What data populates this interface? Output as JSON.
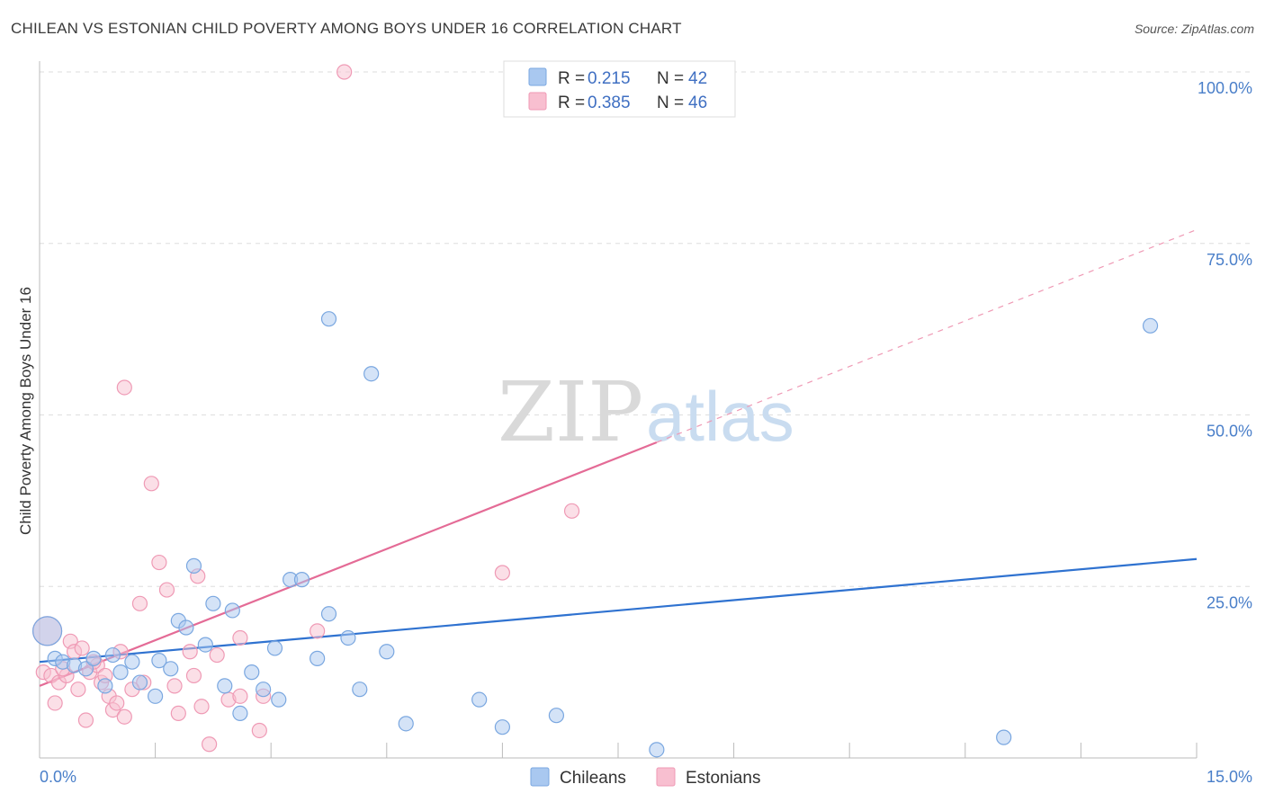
{
  "header": {
    "title": "CHILEAN VS ESTONIAN CHILD POVERTY AMONG BOYS UNDER 16 CORRELATION CHART",
    "source": "Source: ZipAtlas.com"
  },
  "watermark": {
    "zip": "ZIP",
    "atlas": "atlas"
  },
  "colors": {
    "chileans_fill": "#a9c8f0",
    "chileans_stroke": "#7aa7e0",
    "chileans_line": "#2f72d0",
    "estonians_fill": "#f8bfd0",
    "estonians_stroke": "#ef9ab5",
    "estonians_line": "#e46b96",
    "grid": "#dedede"
  },
  "legend": {
    "rows": [
      {
        "r_label": "R =",
        "r_value": "0.215",
        "n_label": "N =",
        "n_value": "42"
      },
      {
        "r_label": "R =",
        "r_value": "0.385",
        "n_label": "N =",
        "n_value": "46"
      }
    ]
  },
  "chart_data": {
    "type": "scatter",
    "title": "CHILEAN VS ESTONIAN CHILD POVERTY AMONG BOYS UNDER 16 CORRELATION CHART",
    "xlabel": "",
    "ylabel": "Child Poverty Among Boys Under 16",
    "xlim": [
      0,
      15
    ],
    "ylim": [
      0,
      100
    ],
    "x_tick_labels": [
      "0.0%",
      "15.0%"
    ],
    "y_ticks": [
      25,
      50,
      75,
      100
    ],
    "y_tick_labels": [
      "25.0%",
      "50.0%",
      "75.0%",
      "100.0%"
    ],
    "grid": true,
    "series": [
      {
        "name": "Chileans",
        "r": 0.215,
        "n": 42,
        "trend": {
          "x": [
            0,
            15
          ],
          "y": [
            14.0,
            29.0
          ],
          "dashed_extension": false
        },
        "points": [
          {
            "x": 0.1,
            "y": 18.5,
            "big": true
          },
          {
            "x": 0.2,
            "y": 14.5
          },
          {
            "x": 0.3,
            "y": 14.0
          },
          {
            "x": 0.45,
            "y": 13.5
          },
          {
            "x": 0.6,
            "y": 13.0
          },
          {
            "x": 0.7,
            "y": 14.5
          },
          {
            "x": 0.85,
            "y": 10.5
          },
          {
            "x": 0.95,
            "y": 15.0
          },
          {
            "x": 1.05,
            "y": 12.5
          },
          {
            "x": 1.2,
            "y": 14.0
          },
          {
            "x": 1.3,
            "y": 11.0
          },
          {
            "x": 1.5,
            "y": 9.0
          },
          {
            "x": 1.55,
            "y": 14.2
          },
          {
            "x": 1.7,
            "y": 13.0
          },
          {
            "x": 1.8,
            "y": 20.0
          },
          {
            "x": 1.9,
            "y": 19.0
          },
          {
            "x": 2.0,
            "y": 28.0
          },
          {
            "x": 2.15,
            "y": 16.5
          },
          {
            "x": 2.25,
            "y": 22.5
          },
          {
            "x": 2.4,
            "y": 10.5
          },
          {
            "x": 2.5,
            "y": 21.5
          },
          {
            "x": 2.6,
            "y": 6.5
          },
          {
            "x": 2.75,
            "y": 12.5
          },
          {
            "x": 2.9,
            "y": 10.0
          },
          {
            "x": 3.05,
            "y": 16.0
          },
          {
            "x": 3.1,
            "y": 8.5
          },
          {
            "x": 3.25,
            "y": 26.0
          },
          {
            "x": 3.4,
            "y": 26.0
          },
          {
            "x": 3.6,
            "y": 14.5
          },
          {
            "x": 3.75,
            "y": 21.0
          },
          {
            "x": 3.75,
            "y": 64.0
          },
          {
            "x": 4.0,
            "y": 17.5
          },
          {
            "x": 4.15,
            "y": 10.0
          },
          {
            "x": 4.3,
            "y": 56.0
          },
          {
            "x": 4.5,
            "y": 15.5
          },
          {
            "x": 4.75,
            "y": 5.0
          },
          {
            "x": 5.7,
            "y": 8.5
          },
          {
            "x": 6.0,
            "y": 4.5
          },
          {
            "x": 6.7,
            "y": 6.2
          },
          {
            "x": 8.0,
            "y": 1.2
          },
          {
            "x": 12.5,
            "y": 3.0
          },
          {
            "x": 14.4,
            "y": 63.0
          }
        ]
      },
      {
        "name": "Estonians",
        "r": 0.385,
        "n": 46,
        "trend": {
          "x": [
            0,
            8.0
          ],
          "y": [
            10.5,
            46.0
          ],
          "dashed_extension": true,
          "dashed_to": {
            "x": 15,
            "y": 77.0
          }
        },
        "points": [
          {
            "x": 0.05,
            "y": 12.5
          },
          {
            "x": 0.15,
            "y": 12.0
          },
          {
            "x": 0.2,
            "y": 8.0
          },
          {
            "x": 0.25,
            "y": 11.0
          },
          {
            "x": 0.35,
            "y": 12.0
          },
          {
            "x": 0.4,
            "y": 17.0
          },
          {
            "x": 0.45,
            "y": 15.5
          },
          {
            "x": 0.5,
            "y": 10.0
          },
          {
            "x": 0.55,
            "y": 16.0
          },
          {
            "x": 0.6,
            "y": 5.5
          },
          {
            "x": 0.65,
            "y": 12.5
          },
          {
            "x": 0.75,
            "y": 13.5
          },
          {
            "x": 0.8,
            "y": 11.0
          },
          {
            "x": 0.85,
            "y": 12.0
          },
          {
            "x": 0.9,
            "y": 9.0
          },
          {
            "x": 0.95,
            "y": 7.0
          },
          {
            "x": 1.0,
            "y": 8.0
          },
          {
            "x": 1.05,
            "y": 15.5
          },
          {
            "x": 1.1,
            "y": 6.0
          },
          {
            "x": 1.1,
            "y": 54.0
          },
          {
            "x": 1.3,
            "y": 22.5
          },
          {
            "x": 1.35,
            "y": 11.0
          },
          {
            "x": 1.45,
            "y": 40.0
          },
          {
            "x": 1.55,
            "y": 28.5
          },
          {
            "x": 1.65,
            "y": 24.5
          },
          {
            "x": 1.75,
            "y": 10.5
          },
          {
            "x": 1.8,
            "y": 6.5
          },
          {
            "x": 1.95,
            "y": 15.5
          },
          {
            "x": 2.05,
            "y": 26.5
          },
          {
            "x": 2.1,
            "y": 7.5
          },
          {
            "x": 2.2,
            "y": 2.0
          },
          {
            "x": 2.3,
            "y": 15.0
          },
          {
            "x": 2.45,
            "y": 8.5
          },
          {
            "x": 2.6,
            "y": 17.5
          },
          {
            "x": 2.6,
            "y": 9.0
          },
          {
            "x": 2.85,
            "y": 4.0
          },
          {
            "x": 2.9,
            "y": 9.0
          },
          {
            "x": 3.6,
            "y": 18.5
          },
          {
            "x": 3.95,
            "y": 100.0
          },
          {
            "x": 6.0,
            "y": 27.0
          },
          {
            "x": 6.9,
            "y": 36.0
          },
          {
            "x": 0.1,
            "y": 18.5,
            "big": true
          },
          {
            "x": 0.3,
            "y": 13.0
          },
          {
            "x": 0.7,
            "y": 14.0
          },
          {
            "x": 1.2,
            "y": 10.0
          },
          {
            "x": 2.0,
            "y": 12.0
          }
        ]
      }
    ]
  },
  "bottom_legend": {
    "items": [
      "Chileans",
      "Estonians"
    ]
  }
}
